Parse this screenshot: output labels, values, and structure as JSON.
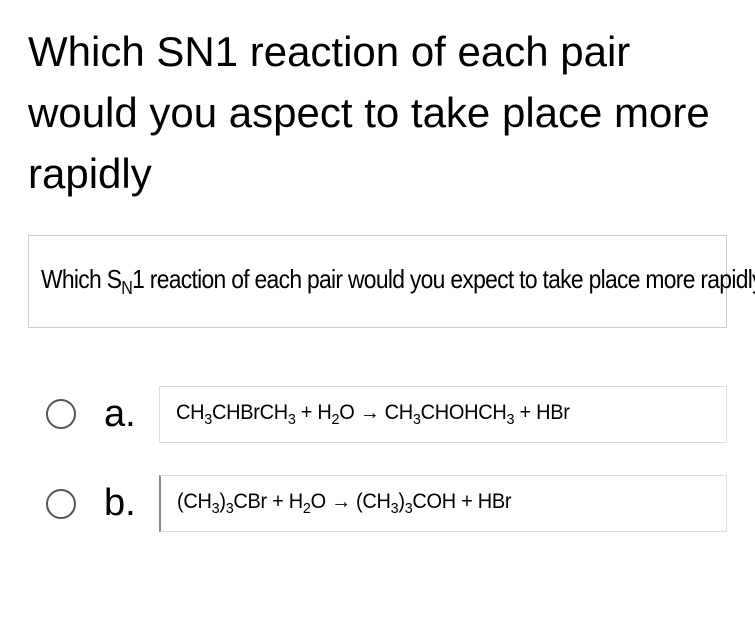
{
  "question": {
    "title": "Which SN1 reaction of each pair would you aspect to take place more rapidly",
    "image_text_html": "Which S<span class='sub'>N</span>1 reaction of each pair would you expect to take place more rapidly?"
  },
  "options": [
    {
      "letter": "a.",
      "formula_html": "CH<span class='sub'>3</span>CHBrCH<span class='sub'>3</span> + H<span class='sub'>2</span>O → CH<span class='sub'>3</span>CHOHCH<span class='sub'>3</span> + HBr",
      "selected": false
    },
    {
      "letter": "b.",
      "formula_html": "(CH<span class='sub'>3</span>)<span class='sub'>3</span>CBr + H<span class='sub'>2</span>O → (CH<span class='sub'>3</span>)<span class='sub'>3</span>COH + HBr",
      "selected": false
    }
  ],
  "styling": {
    "title_fontsize": 42,
    "title_color": "#000000",
    "option_letter_fontsize": 38,
    "formula_fontsize": 21,
    "radio_border_color": "#555555",
    "image_box_border": "#cccccc",
    "formula_box_border": "#dddddd",
    "background": "#ffffff"
  }
}
